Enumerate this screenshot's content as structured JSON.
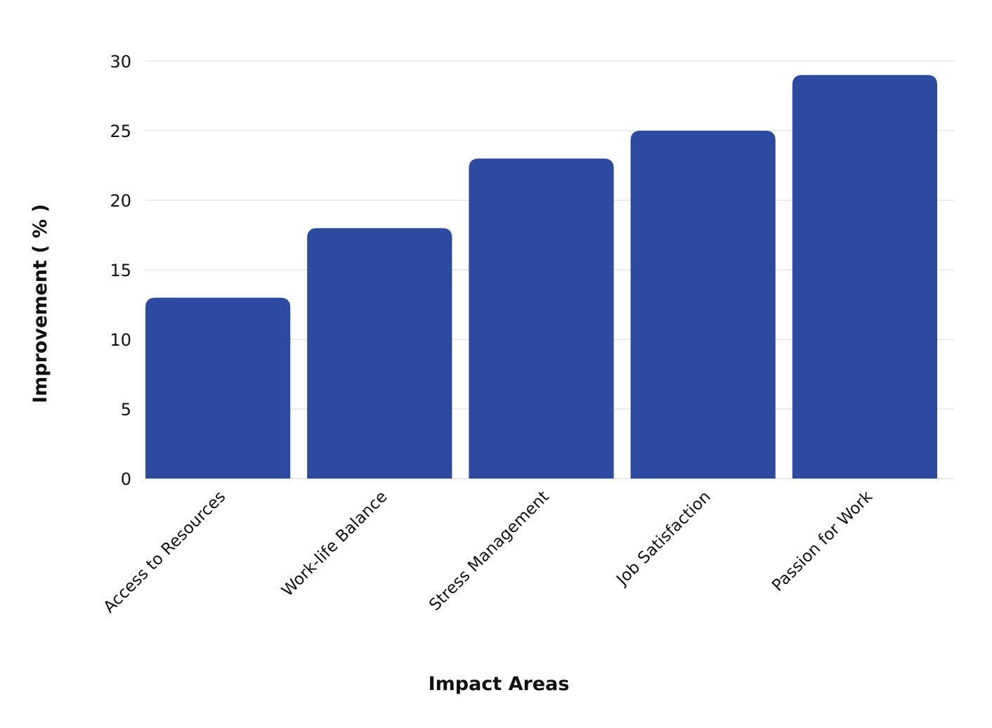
{
  "chart_data": {
    "type": "bar",
    "title": "",
    "xlabel": "Impact Areas",
    "ylabel": "Improvement ( % )",
    "categories": [
      "Access to Resources",
      "Work-life Balance",
      "Stress Management",
      "Job Satisfaction",
      "Passion for Work"
    ],
    "values": [
      13,
      18,
      23,
      25,
      29
    ],
    "ylim": [
      0,
      30
    ],
    "yticks": [
      0,
      5,
      10,
      15,
      20,
      25,
      30
    ],
    "grid": true,
    "legend": "none",
    "bar_color": "#2b4aa0"
  }
}
